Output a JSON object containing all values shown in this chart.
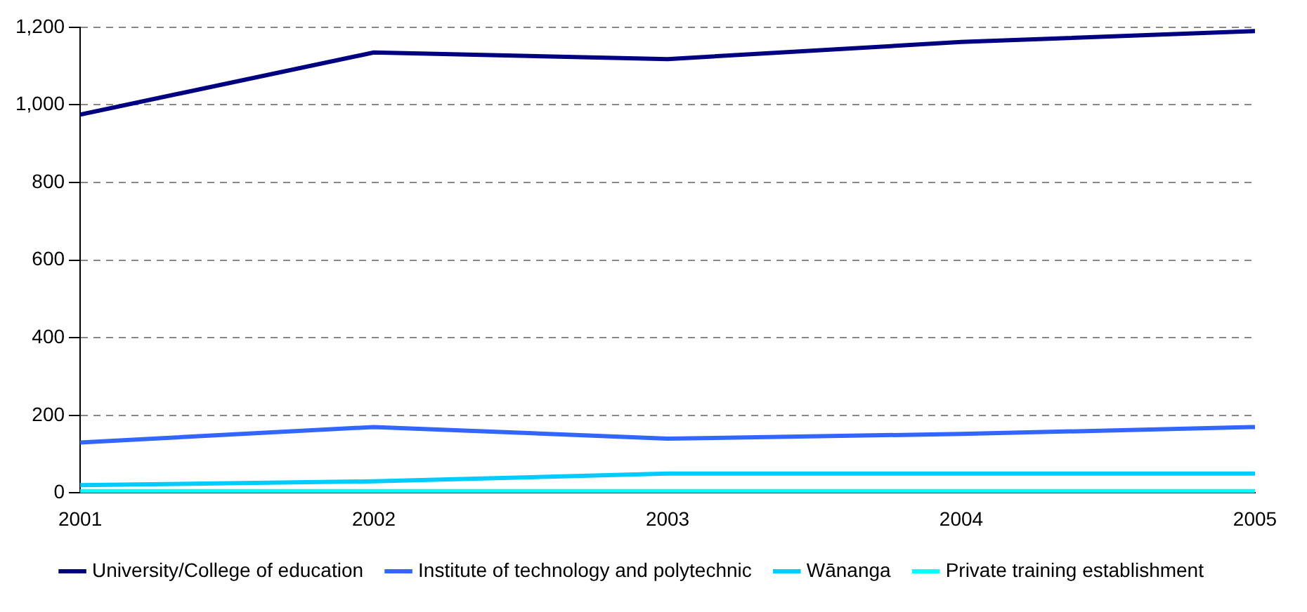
{
  "chart_data": {
    "type": "line",
    "x": [
      2001,
      2002,
      2003,
      2004,
      2005
    ],
    "xlim": [
      2001,
      2005
    ],
    "xticks": [
      2001,
      2002,
      2003,
      2004,
      2005
    ],
    "ylim": [
      0,
      1200
    ],
    "yticks": [
      0,
      {
        "value": 200,
        "label": "200"
      },
      {
        "value": 400,
        "label": "400"
      },
      {
        "value": 600,
        "label": "600"
      },
      {
        "value": 800,
        "label": "800"
      },
      {
        "value": 1000,
        "label": "1,000"
      },
      {
        "value": 1200,
        "label": "1,200"
      }
    ],
    "grid": "y",
    "legend": "bottom",
    "marker": "none",
    "line_style": "solid",
    "series": [
      {
        "name": "University/College of education",
        "color": "#000080",
        "values": [
          975,
          1135,
          1118,
          1162,
          1190
        ]
      },
      {
        "name": "Institute of technology and polytechnic",
        "color": "#3366ff",
        "values": [
          130,
          170,
          140,
          152,
          170
        ]
      },
      {
        "name": "Wānanga",
        "color": "#00ccff",
        "values": [
          20,
          30,
          50,
          50,
          50
        ]
      },
      {
        "name": "Private training establishment",
        "color": "#00ffff",
        "values": [
          5,
          5,
          5,
          5,
          5
        ]
      }
    ]
  }
}
